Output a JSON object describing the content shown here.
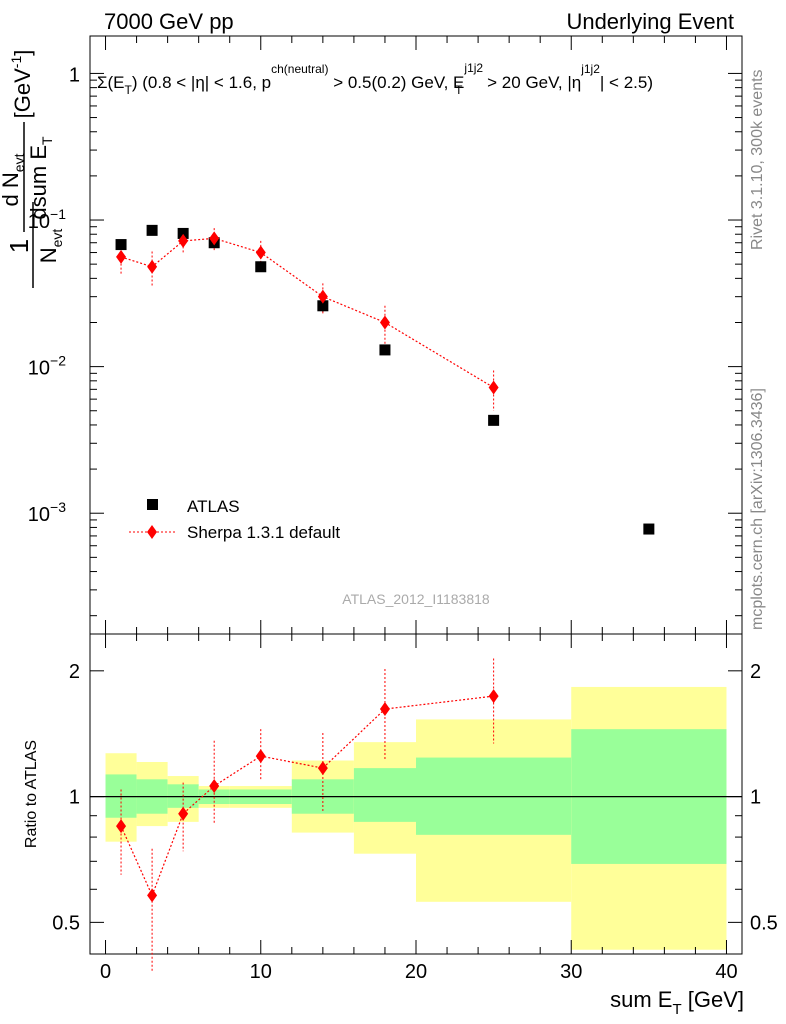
{
  "header": {
    "left": "7000 GeV pp",
    "right": "Underlying Event"
  },
  "title": "Σ(E_T) (0.8 < |η| < 1.6, p^ch(neutral) > 0.5(0.2) GeV, E_T^j1j2 > 20 GeV, |η^j1j2| < 2.5)",
  "title_parts": {
    "a": "Σ(E",
    "a_sub": "T",
    "b": ") (0.8 < |η| < 1.6, p",
    "b_sup": "ch(neutral)",
    "c": " > 0.5(0.2) GeV, E",
    "c_sup": "j1j2",
    "c_sub": "T",
    "d": " > 20 GeV, |η",
    "d_sup": "j1j2",
    "e": "| < 2.5)"
  },
  "side_labels": {
    "rivet": "Rivet 3.1.10,  300k events",
    "mcplots": "mcplots.cern.ch [arXiv:1306.3436]"
  },
  "watermark": "ATLAS_2012_I1183818",
  "ylabel_main": {
    "frac_num": "1",
    "frac_den": "N",
    "frac_den_sub": "evt",
    "d_num": "d N",
    "d_num_sub": "evt",
    "d_den": "dsum E",
    "d_den_sub": "T",
    "unit": "[GeV",
    "unit_sup": "-1",
    "unit_close": "]"
  },
  "ylabel_ratio": "Ratio to ATLAS",
  "xlabel": {
    "a": "sum E",
    "sub": "T",
    "b": " [GeV]"
  },
  "legend": [
    {
      "name": "ATLAS",
      "marker": "square",
      "color": "#000000"
    },
    {
      "name": "Sherpa 1.3.1 default",
      "marker": "diamond",
      "color": "#ff0000"
    }
  ],
  "colors": {
    "data": "#000000",
    "mc": "#ff0000",
    "band_outer": "#ffff99",
    "band_inner": "#99ff99"
  },
  "chart_data": [
    {
      "type": "scatter",
      "panel": "main",
      "xlim": [
        -1,
        41
      ],
      "ylim": [
        0.00015,
        1.8
      ],
      "yscale": "log",
      "yticks": [
        {
          "v": 1,
          "label": "1"
        },
        {
          "v": 0.1,
          "label": "10",
          "sup": "−1"
        },
        {
          "v": 0.01,
          "label": "10",
          "sup": "−2"
        },
        {
          "v": 0.001,
          "label": "10",
          "sup": "−3"
        }
      ],
      "series": [
        {
          "name": "ATLAS",
          "x": [
            1,
            3,
            5,
            7,
            10,
            14,
            18,
            25,
            35
          ],
          "y": [
            0.068,
            0.085,
            0.081,
            0.07,
            0.048,
            0.026,
            0.013,
            0.0043,
            0.00078
          ],
          "xerr": [
            1,
            1,
            1,
            1,
            2,
            2,
            2,
            5,
            5
          ],
          "yerr": [
            0.003,
            0.003,
            0.003,
            0.003,
            0.002,
            0.0025,
            0.0006,
            0.0002,
            3e-05
          ]
        },
        {
          "name": "Sherpa 1.3.1 default",
          "x": [
            1,
            3,
            5,
            7,
            10,
            14,
            18,
            25
          ],
          "y": [
            0.056,
            0.048,
            0.072,
            0.075,
            0.06,
            0.03,
            0.02,
            0.0072
          ],
          "xerr": [
            1,
            1,
            1,
            1,
            2,
            2,
            2,
            5
          ],
          "yerr_up": [
            0.013,
            0.013,
            0.013,
            0.013,
            0.012,
            0.007,
            0.006,
            0.0022
          ],
          "yerr_dn": [
            0.013,
            0.013,
            0.013,
            0.013,
            0.012,
            0.007,
            0.006,
            0.0022
          ]
        }
      ]
    },
    {
      "type": "scatter",
      "panel": "ratio",
      "xlim": [
        -1,
        41
      ],
      "ylim": [
        0.42,
        2.45
      ],
      "yscale": "log",
      "yticks": [
        {
          "v": 0.5,
          "label": "0.5"
        },
        {
          "v": 1,
          "label": "1"
        },
        {
          "v": 2,
          "label": "2"
        }
      ],
      "xticks": [
        0,
        10,
        20,
        30,
        40
      ],
      "bands": {
        "edges": [
          0,
          2,
          4,
          6,
          8,
          12,
          16,
          20,
          30,
          40
        ],
        "outer_lo": [
          0.78,
          0.85,
          0.87,
          0.94,
          0.94,
          0.82,
          0.73,
          0.56,
          0.43
        ],
        "outer_hi": [
          1.27,
          1.21,
          1.12,
          1.06,
          1.06,
          1.22,
          1.35,
          1.53,
          1.83
        ],
        "inner_lo": [
          0.89,
          0.91,
          0.94,
          0.96,
          0.96,
          0.91,
          0.87,
          0.81,
          0.69
        ],
        "inner_hi": [
          1.13,
          1.1,
          1.07,
          1.04,
          1.04,
          1.1,
          1.17,
          1.24,
          1.45
        ]
      },
      "series": [
        {
          "name": "Sherpa 1.3.1 default",
          "x": [
            1,
            3,
            5,
            7,
            10,
            14,
            18,
            25
          ],
          "y": [
            0.85,
            0.58,
            0.91,
            1.06,
            1.25,
            1.17,
            1.62,
            1.74
          ],
          "xerr": [
            1,
            1,
            1,
            1,
            2,
            2,
            2,
            5
          ],
          "yerr_up": [
            0.19,
            0.17,
            0.17,
            0.3,
            0.2,
            0.25,
            0.4,
            0.4
          ],
          "yerr_dn": [
            0.2,
            0.2,
            0.17,
            0.2,
            0.16,
            0.25,
            0.4,
            0.4
          ]
        }
      ]
    }
  ]
}
